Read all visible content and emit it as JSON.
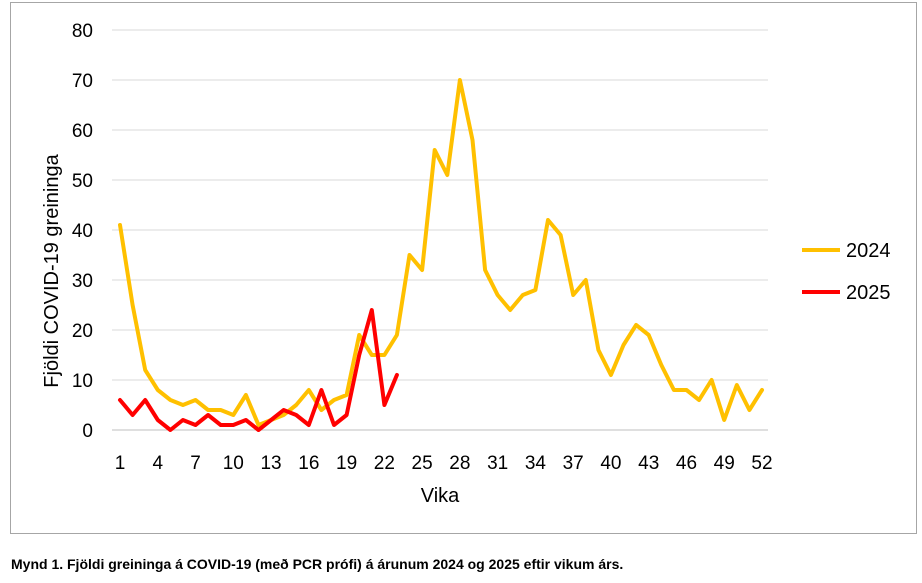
{
  "caption": "Mynd 1. Fjöldi greininga á COVID-19 (með PCR prófi) á árunum 2024 og 2025 eftir vikum árs.",
  "chart_data": {
    "type": "line",
    "title": "",
    "xlabel": "Vika",
    "ylabel": "Fjöldi COVID-19 greininga",
    "ylim": [
      0,
      80
    ],
    "xlim": [
      1,
      52
    ],
    "yticks": [
      0,
      10,
      20,
      30,
      40,
      50,
      60,
      70,
      80
    ],
    "xticks": [
      "1",
      "4",
      "7",
      "10",
      "13",
      "16",
      "19",
      "22",
      "25",
      "28",
      "31",
      "34",
      "37",
      "40",
      "43",
      "46",
      "49",
      "52"
    ],
    "grid": "horizontal",
    "legend_position": "right",
    "series": [
      {
        "name": "2024",
        "color": "#ffc000",
        "x": [
          1,
          2,
          3,
          4,
          5,
          6,
          7,
          8,
          9,
          10,
          11,
          12,
          13,
          14,
          15,
          16,
          17,
          18,
          19,
          20,
          21,
          22,
          23,
          24,
          25,
          26,
          27,
          28,
          29,
          30,
          31,
          32,
          33,
          34,
          35,
          36,
          37,
          38,
          39,
          40,
          41,
          42,
          43,
          44,
          45,
          46,
          47,
          48,
          49,
          50,
          51,
          52
        ],
        "values": [
          41,
          25,
          12,
          8,
          6,
          5,
          6,
          4,
          4,
          3,
          7,
          1,
          2,
          3,
          5,
          8,
          4,
          6,
          7,
          19,
          15,
          15,
          19,
          35,
          32,
          56,
          51,
          70,
          58,
          32,
          27,
          24,
          27,
          28,
          42,
          39,
          27,
          30,
          16,
          11,
          17,
          21,
          19,
          13,
          8,
          8,
          6,
          10,
          2,
          9,
          4,
          8
        ]
      },
      {
        "name": "2025",
        "color": "#ff0000",
        "x": [
          1,
          2,
          3,
          4,
          5,
          6,
          7,
          8,
          9,
          10,
          11,
          12,
          13,
          14,
          15,
          16,
          17,
          18,
          19,
          20,
          21,
          22,
          23
        ],
        "values": [
          6,
          3,
          6,
          2,
          0,
          2,
          1,
          3,
          1,
          1,
          2,
          0,
          2,
          4,
          3,
          1,
          8,
          1,
          3,
          15,
          24,
          5,
          11
        ]
      }
    ]
  }
}
